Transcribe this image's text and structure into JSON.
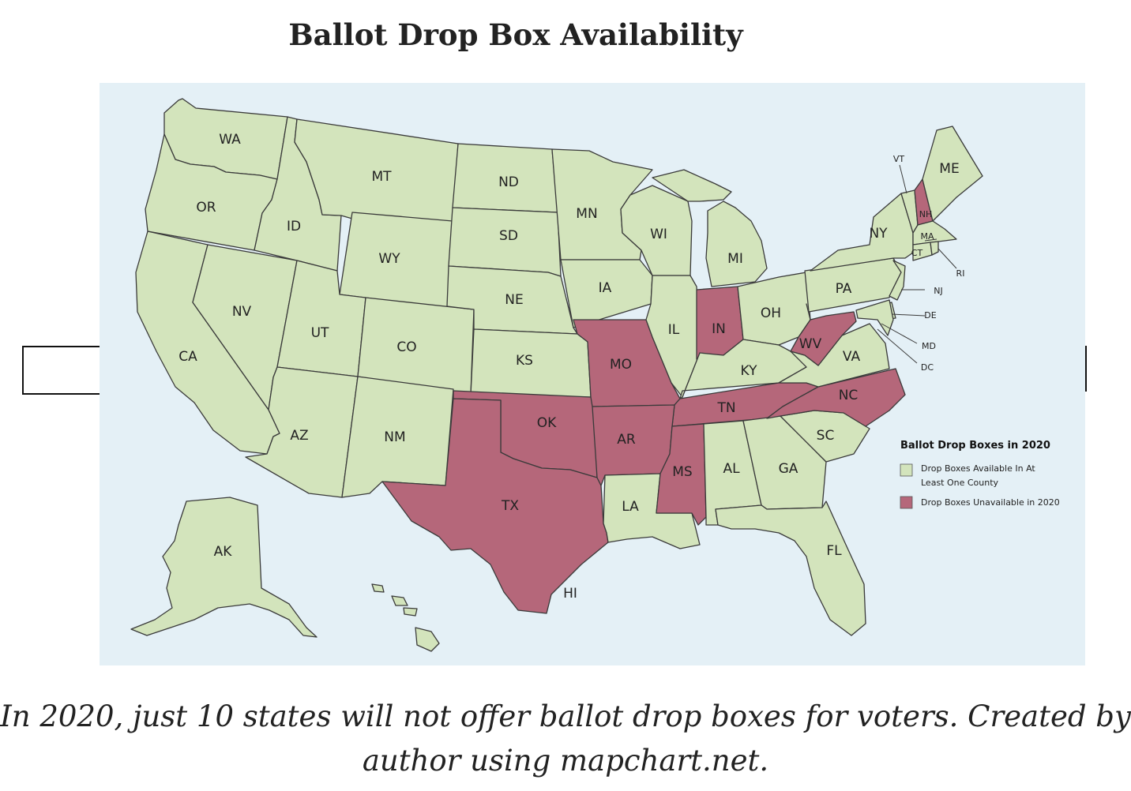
{
  "title": "Ballot Drop Box Availability",
  "caption": "In 2020, just 10 states will not offer ballot drop boxes for voters. Created by author using mapchart.net.",
  "colors": {
    "available": "#d3e4bc",
    "unavailable": "#b5677a",
    "water": "#e4f0f6",
    "border": "#3a3a3a"
  },
  "legend": {
    "title": "Ballot Drop Boxes in 2020",
    "available_label_line1": "Drop Boxes Available In At",
    "available_label_line2": "Least One County",
    "unavailable_label": "Drop Boxes Unavailable in 2020"
  },
  "states_available": [
    "WA",
    "OR",
    "CA",
    "NV",
    "ID",
    "MT",
    "WY",
    "UT",
    "AZ",
    "CO",
    "NM",
    "ND",
    "SD",
    "NE",
    "KS",
    "MN",
    "IA",
    "WI",
    "IL",
    "MI",
    "OH",
    "KY",
    "PA",
    "NY",
    "VT",
    "ME",
    "MA",
    "CT",
    "RI",
    "NJ",
    "DE",
    "MD",
    "DC",
    "VA",
    "SC",
    "GA",
    "AL",
    "LA",
    "FL",
    "AK",
    "HI"
  ],
  "states_unavailable": [
    "NH",
    "MO",
    "IN",
    "WV",
    "TX",
    "OK",
    "AR",
    "TN",
    "NC",
    "MS"
  ],
  "labels": {
    "WA": "WA",
    "OR": "OR",
    "CA": "CA",
    "NV": "NV",
    "ID": "ID",
    "MT": "MT",
    "WY": "WY",
    "UT": "UT",
    "AZ": "AZ",
    "CO": "CO",
    "NM": "NM",
    "ND": "ND",
    "SD": "SD",
    "NE": "NE",
    "KS": "KS",
    "OK": "OK",
    "TX": "TX",
    "MN": "MN",
    "IA": "IA",
    "MO": "MO",
    "AR": "AR",
    "LA": "LA",
    "WI": "WI",
    "IL": "IL",
    "MI": "MI",
    "IN": "IN",
    "OH": "OH",
    "KY": "KY",
    "TN": "TN",
    "MS": "MS",
    "AL": "AL",
    "GA": "GA",
    "FL": "FL",
    "SC": "SC",
    "NC": "NC",
    "VA": "VA",
    "WV": "WV",
    "PA": "PA",
    "NY": "NY",
    "VT": "VT",
    "NH": "NH",
    "ME": "ME",
    "MA": "MA",
    "CT": "CT",
    "RI": "RI",
    "NJ": "NJ",
    "DE": "DE",
    "MD": "MD",
    "DC": "DC",
    "AK": "AK",
    "HI": "HI"
  }
}
